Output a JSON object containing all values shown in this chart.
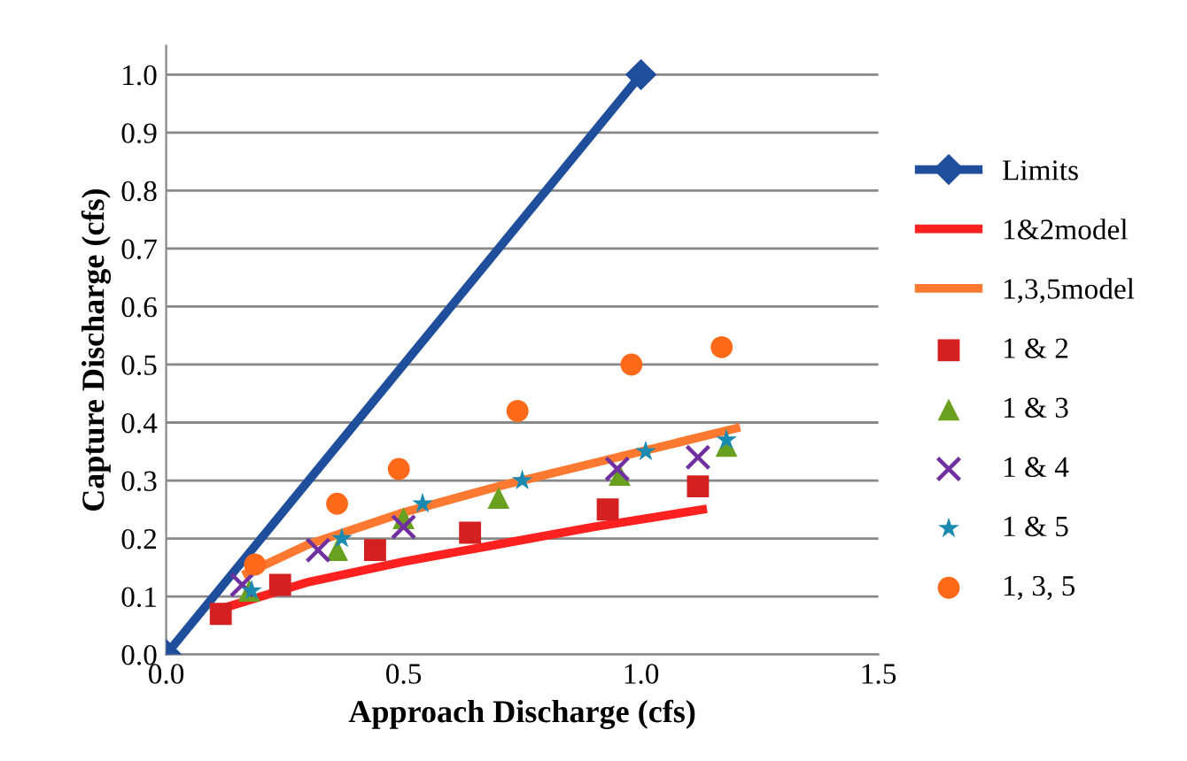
{
  "chart_data": {
    "type": "scatter",
    "xlabel": "Approach Discharge (cfs)",
    "ylabel": "Capture Discharge (cfs)",
    "xlim": [
      0,
      1.5
    ],
    "ylim": [
      0,
      1.05
    ],
    "xticks": [
      {
        "value": 0,
        "label": "0.0"
      },
      {
        "value": 0.5,
        "label": "0.5"
      },
      {
        "value": 1,
        "label": "1.0"
      },
      {
        "value": 1.5,
        "label": "1.5"
      }
    ],
    "yticks": [
      {
        "value": 0,
        "label": "0.0"
      },
      {
        "value": 0.1,
        "label": "0.1"
      },
      {
        "value": 0.2,
        "label": "0.2"
      },
      {
        "value": 0.3,
        "label": "0.3"
      },
      {
        "value": 0.4,
        "label": "0.4"
      },
      {
        "value": 0.5,
        "label": "0.5"
      },
      {
        "value": 0.6,
        "label": "0.6"
      },
      {
        "value": 0.7,
        "label": "0.7"
      },
      {
        "value": 0.8,
        "label": "0.8"
      },
      {
        "value": 0.9,
        "label": "0.9"
      },
      {
        "value": 1,
        "label": "1.0"
      }
    ],
    "grid": "y",
    "legend": "right",
    "series": [
      {
        "name": "Limits",
        "type": "line",
        "marker": "diamond",
        "color": "#1f4e9c",
        "x": [
          0,
          1
        ],
        "values": [
          0,
          1
        ]
      },
      {
        "name": "1&2model",
        "type": "line",
        "marker": "none",
        "color": "#ff2020",
        "x": [
          0.12,
          0.3,
          0.5,
          0.7,
          0.9,
          1.13
        ],
        "values": [
          0.08,
          0.125,
          0.16,
          0.19,
          0.22,
          0.25
        ]
      },
      {
        "name": "1,3,5model",
        "type": "line",
        "marker": "none",
        "color": "#ff7a30",
        "x": [
          0.17,
          0.3,
          0.5,
          0.7,
          0.9,
          1.2
        ],
        "values": [
          0.14,
          0.19,
          0.245,
          0.29,
          0.33,
          0.39
        ]
      },
      {
        "name": "1 & 2",
        "marker": "square",
        "color": "#d42020",
        "x": [
          0.115,
          0.24,
          0.44,
          0.64,
          0.93,
          1.12
        ],
        "values": [
          0.07,
          0.12,
          0.18,
          0.21,
          0.25,
          0.29
        ]
      },
      {
        "name": "1 & 3",
        "marker": "triangle",
        "color": "#6aa020",
        "x": [
          0.175,
          0.36,
          0.5,
          0.7,
          0.955,
          1.18
        ],
        "values": [
          0.11,
          0.18,
          0.235,
          0.27,
          0.31,
          0.36
        ]
      },
      {
        "name": "1 & 4",
        "marker": "cross",
        "color": "#7030a0",
        "x": [
          0.16,
          0.32,
          0.5,
          0.95,
          1.12
        ],
        "values": [
          0.12,
          0.18,
          0.22,
          0.32,
          0.34
        ]
      },
      {
        "name": "1 & 5",
        "marker": "star",
        "color": "#1a8ab0",
        "x": [
          0.18,
          0.37,
          0.54,
          0.75,
          1.01,
          1.18
        ],
        "values": [
          0.11,
          0.2,
          0.26,
          0.3,
          0.35,
          0.37
        ]
      },
      {
        "name": "1, 3, 5",
        "marker": "circle",
        "color": "#ff6a1a",
        "x": [
          0.187,
          0.36,
          0.49,
          0.74,
          0.98,
          1.17
        ],
        "values": [
          0.155,
          0.26,
          0.32,
          0.42,
          0.5,
          0.53
        ]
      }
    ]
  }
}
